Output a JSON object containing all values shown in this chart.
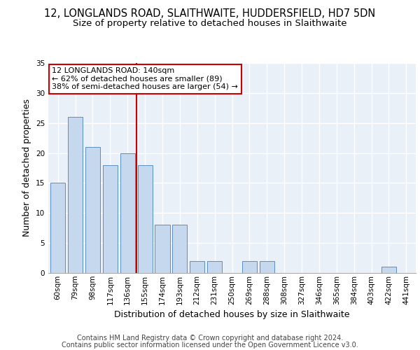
{
  "title1": "12, LONGLANDS ROAD, SLAITHWAITE, HUDDERSFIELD, HD7 5DN",
  "title2": "Size of property relative to detached houses in Slaithwaite",
  "xlabel": "Distribution of detached houses by size in Slaithwaite",
  "ylabel": "Number of detached properties",
  "categories": [
    "60sqm",
    "79sqm",
    "98sqm",
    "117sqm",
    "136sqm",
    "155sqm",
    "174sqm",
    "193sqm",
    "212sqm",
    "231sqm",
    "250sqm",
    "269sqm",
    "288sqm",
    "308sqm",
    "327sqm",
    "346sqm",
    "365sqm",
    "384sqm",
    "403sqm",
    "422sqm",
    "441sqm"
  ],
  "values": [
    15,
    26,
    21,
    18,
    20,
    18,
    8,
    8,
    2,
    2,
    0,
    2,
    2,
    0,
    0,
    0,
    0,
    0,
    0,
    1,
    0
  ],
  "bar_color": "#c5d8ed",
  "bar_edge_color": "#5a8fc2",
  "annotation_line1": "12 LONGLANDS ROAD: 140sqm",
  "annotation_line2": "← 62% of detached houses are smaller (89)",
  "annotation_line3": "38% of semi-detached houses are larger (54) →",
  "ref_line_x": 4.5,
  "ref_line_color": "#cc0000",
  "annotation_box_color": "#cc0000",
  "ylim": [
    0,
    35
  ],
  "yticks": [
    0,
    5,
    10,
    15,
    20,
    25,
    30,
    35
  ],
  "footer1": "Contains HM Land Registry data © Crown copyright and database right 2024.",
  "footer2": "Contains public sector information licensed under the Open Government Licence v3.0.",
  "bg_color": "#eaf0f8",
  "grid_color": "#ffffff",
  "title1_fontsize": 10.5,
  "title2_fontsize": 9.5,
  "axis_label_fontsize": 9,
  "tick_fontsize": 7.5,
  "footer_fontsize": 7,
  "annot_fontsize": 8
}
